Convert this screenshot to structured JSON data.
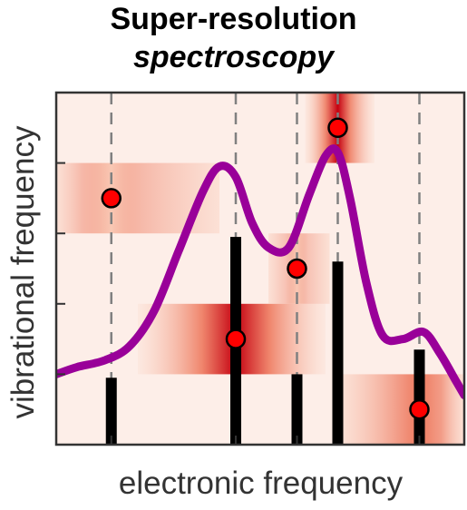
{
  "figure": {
    "title_line1": "Super-resolution",
    "title_line2": "spectroscopy",
    "xlabel": "electronic frequency",
    "ylabel": "vibrational frequency"
  },
  "colors": {
    "band_light": "#f9c8b4",
    "band_mid": "#ee7a5f",
    "band_dark": "#c40010",
    "background_tint": "#fdeee8",
    "spectrum_curve": "#990099",
    "stick": "#000000",
    "marker_fill": "#ff0000",
    "marker_edge": "#000000",
    "dashed_line": "#808080"
  },
  "chart_data": {
    "type": "scatter",
    "xlabel": "electronic frequency",
    "ylabel": "vibrational frequency",
    "xlim": [
      0,
      1
    ],
    "ylim": [
      0,
      1
    ],
    "grid": false,
    "legend": "none",
    "axes_ticks_labeled": false,
    "peaks": [
      {
        "x": 0.135,
        "y": 0.7,
        "stick_height": 0.19,
        "band_intensity": 0.45,
        "band_x": [
          0.0,
          0.4
        ]
      },
      {
        "x": 0.44,
        "y": 0.3,
        "stick_height": 0.59,
        "band_intensity": 1.0,
        "band_x": [
          0.2,
          0.66
        ]
      },
      {
        "x": 0.59,
        "y": 0.5,
        "stick_height": 0.2,
        "band_intensity": 0.35,
        "band_x": [
          0.52,
          0.67
        ]
      },
      {
        "x": 0.69,
        "y": 0.9,
        "stick_height": 0.52,
        "band_intensity": 0.95,
        "band_x": [
          0.61,
          0.78
        ]
      },
      {
        "x": 0.89,
        "y": 0.1,
        "stick_height": 0.27,
        "band_intensity": 0.75,
        "band_x": [
          0.7,
          1.0
        ]
      }
    ],
    "spectrum_curve": [
      [
        0.0,
        0.2
      ],
      [
        0.05,
        0.22
      ],
      [
        0.12,
        0.24
      ],
      [
        0.18,
        0.28
      ],
      [
        0.24,
        0.38
      ],
      [
        0.3,
        0.55
      ],
      [
        0.36,
        0.72
      ],
      [
        0.4,
        0.79
      ],
      [
        0.44,
        0.76
      ],
      [
        0.48,
        0.63
      ],
      [
        0.52,
        0.56
      ],
      [
        0.57,
        0.56
      ],
      [
        0.62,
        0.71
      ],
      [
        0.66,
        0.82
      ],
      [
        0.69,
        0.83
      ],
      [
        0.72,
        0.7
      ],
      [
        0.76,
        0.46
      ],
      [
        0.8,
        0.31
      ],
      [
        0.85,
        0.3
      ],
      [
        0.9,
        0.32
      ],
      [
        0.94,
        0.26
      ],
      [
        0.98,
        0.18
      ],
      [
        1.0,
        0.14
      ]
    ]
  }
}
